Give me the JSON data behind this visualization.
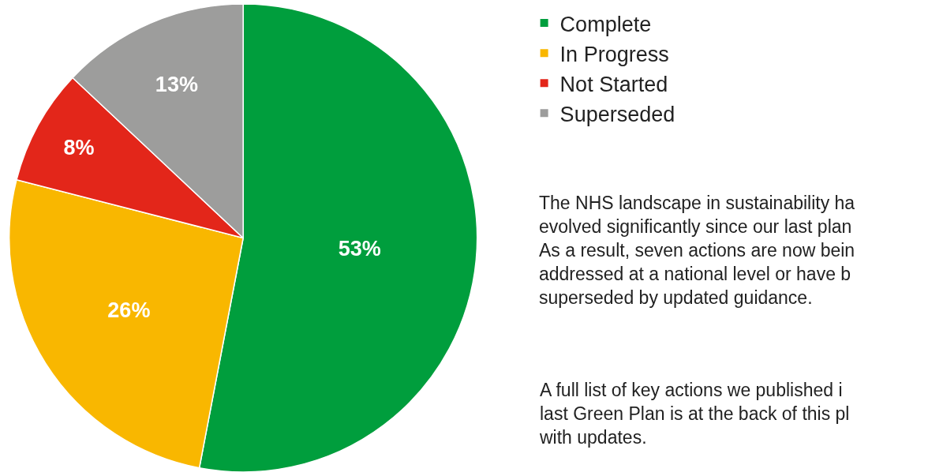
{
  "chart_data": {
    "type": "pie",
    "categories": [
      "Complete",
      "In Progress",
      "Not Started",
      "Superseded"
    ],
    "values": [
      53,
      26,
      8,
      13
    ],
    "value_labels": [
      "53%",
      "26%",
      "8%",
      "13%"
    ],
    "colors": [
      "#009e3d",
      "#f9b700",
      "#e3261a",
      "#9d9d9c"
    ],
    "legend": "top right",
    "annotations": [
      "The NHS landscape in sustainability ha\nevolved significantly since our last plan\nAs a result, seven actions are now bein\naddressed at a national level or have b\nsuperseded by updated guidance.",
      "A full list of key actions we published i\nlast Green Plan is at the back of this pl\nwith updates."
    ]
  }
}
